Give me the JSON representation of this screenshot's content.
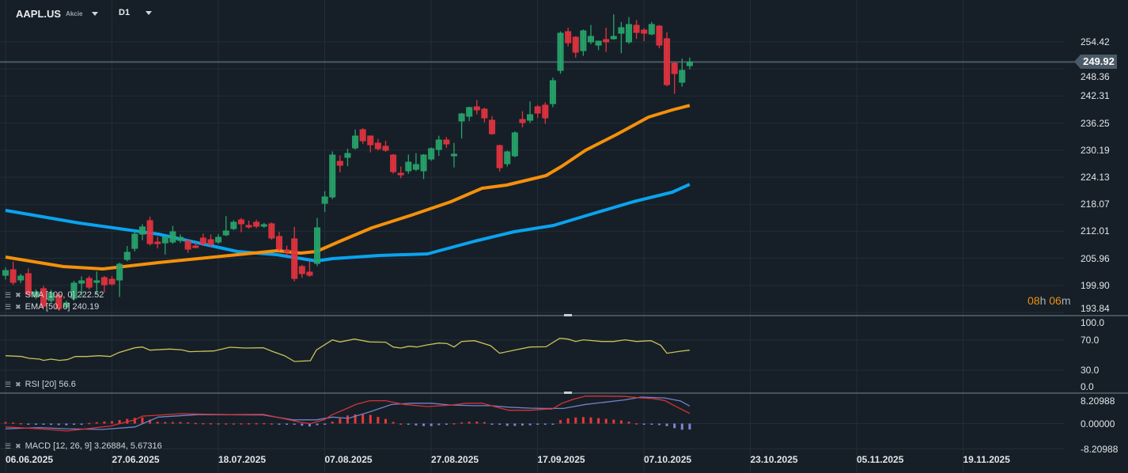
{
  "header": {
    "symbol": "AAPL.US",
    "asset_type": "Akcie",
    "timeframe": "D1"
  },
  "colors": {
    "bg": "#161f27",
    "grid": "#222d36",
    "up": "#27a46c",
    "down": "#e2333f",
    "sma": "#0aa3ef",
    "ema": "#f5900c",
    "rsi": "#c9c25a",
    "macd": "#d63239",
    "signal": "#7382c8",
    "hist_pos": "#e8383a",
    "hist_neg": "#7b86d6",
    "price_line": "#4a5a66"
  },
  "price_axis": {
    "labels": [
      "254.42",
      "248.36",
      "242.31",
      "236.25",
      "230.19",
      "224.13",
      "218.07",
      "212.01",
      "205.96",
      "199.90",
      "193.84"
    ]
  },
  "current_price": "249.92",
  "timer": {
    "hours": "08",
    "h_unit": "h",
    "minutes": "06",
    "m_unit": "m"
  },
  "indicators": {
    "sma_label": "SMA [100,  0] 222.52",
    "ema_label": "EMA [50, 0] 240.19",
    "rsi_label": "RSI [20]  56.6",
    "macd_label": "MACD [12, 26, 9] 3.26884,  5.67316"
  },
  "rsi_axis": [
    "100.0",
    "70.0",
    "30.0",
    "0.0"
  ],
  "macd_axis": [
    "8.20988",
    "0.00000",
    "-8.20988"
  ],
  "time_axis": [
    "06.06.2025",
    "27.06.2025",
    "18.07.2025",
    "07.08.2025",
    "27.08.2025",
    "17.09.2025",
    "07.10.2025",
    "23.10.2025",
    "05.11.2025",
    "19.11.2025"
  ],
  "chart_data": {
    "type": "candlestick",
    "price_range": [
      193.84,
      254.42
    ],
    "ohlc": [
      [
        202.16,
        203.9,
        201.2,
        203.22
      ],
      [
        203.4,
        205.2,
        200.0,
        200.57
      ],
      [
        201.1,
        202.5,
        200.4,
        201.98
      ],
      [
        202.52,
        203.7,
        197.5,
        197.91
      ],
      [
        197.38,
        199.0,
        196.8,
        198.44
      ],
      [
        199.15,
        199.8,
        194.9,
        195.25
      ],
      [
        196.49,
        198.9,
        196.0,
        198.26
      ],
      [
        197.73,
        198.3,
        194.3,
        194.72
      ],
      [
        195.08,
        196.5,
        194.6,
        195.96
      ],
      [
        197.02,
        200.9,
        196.5,
        200.39
      ],
      [
        200.39,
        201.9,
        197.6,
        200.92
      ],
      [
        201.45,
        202.0,
        199.0,
        199.5
      ],
      [
        200.57,
        203.0,
        197.8,
        200.92
      ],
      [
        201.63,
        202.0,
        198.3,
        200.04
      ],
      [
        201.28,
        202.0,
        199.9,
        200.21
      ],
      [
        201.1,
        205.0,
        197.3,
        204.64
      ],
      [
        205.7,
        208.7,
        205.3,
        207.3
      ],
      [
        208.18,
        212.2,
        207.5,
        211.37
      ],
      [
        211.37,
        213.6,
        210.0,
        212.97
      ],
      [
        214.39,
        215.3,
        208.8,
        209.25
      ],
      [
        209.6,
        210.8,
        208.2,
        209.25
      ],
      [
        209.42,
        211.0,
        206.8,
        210.66
      ],
      [
        209.6,
        213.2,
        209.2,
        211.9
      ],
      [
        209.96,
        211.3,
        209.4,
        210.66
      ],
      [
        209.78,
        210.2,
        207.2,
        208.01
      ],
      [
        208.72,
        209.6,
        208.2,
        208.36
      ],
      [
        210.49,
        211.5,
        208.7,
        209.25
      ],
      [
        210.13,
        211.3,
        208.5,
        209.07
      ],
      [
        209.6,
        211.4,
        209.2,
        210.66
      ],
      [
        211.2,
        215.4,
        210.9,
        212.08
      ],
      [
        212.61,
        214.5,
        212.3,
        214.03
      ],
      [
        214.56,
        215.0,
        211.8,
        213.68
      ],
      [
        213.32,
        214.4,
        212.6,
        212.97
      ],
      [
        214.03,
        214.6,
        212.7,
        213.15
      ],
      [
        213.15,
        213.9,
        212.8,
        213.5
      ],
      [
        213.68,
        214.0,
        210.1,
        210.49
      ],
      [
        210.84,
        211.9,
        207.6,
        208.01
      ],
      [
        207.83,
        208.8,
        206.6,
        207.3
      ],
      [
        210.31,
        213.0,
        200.8,
        201.45
      ],
      [
        204.11,
        204.5,
        201.6,
        202.52
      ],
      [
        202.87,
        205.3,
        201.8,
        202.16
      ],
      [
        204.82,
        215.0,
        204.2,
        212.79
      ],
      [
        218.28,
        221.0,
        216.3,
        219.7
      ],
      [
        219.7,
        229.9,
        219.2,
        229.09
      ],
      [
        227.67,
        229.0,
        225.2,
        226.79
      ],
      [
        228.56,
        230.5,
        226.6,
        229.44
      ],
      [
        230.68,
        234.8,
        230.3,
        233.34
      ],
      [
        234.76,
        235.1,
        231.6,
        232.28
      ],
      [
        233.34,
        233.5,
        229.7,
        231.39
      ],
      [
        231.75,
        232.7,
        230.1,
        230.51
      ],
      [
        231.04,
        232.3,
        229.8,
        230.15
      ],
      [
        229.09,
        229.3,
        224.9,
        225.37
      ],
      [
        225.01,
        226.5,
        223.9,
        224.66
      ],
      [
        225.55,
        229.2,
        224.9,
        227.49
      ],
      [
        225.9,
        229.5,
        225.5,
        226.96
      ],
      [
        225.55,
        229.3,
        223.7,
        229.09
      ],
      [
        228.2,
        230.8,
        227.8,
        230.51
      ],
      [
        230.33,
        233.4,
        228.9,
        232.45
      ],
      [
        232.45,
        233.1,
        230.7,
        231.57
      ],
      [
        228.91,
        231.8,
        226.3,
        229.27
      ],
      [
        236.71,
        238.5,
        232.8,
        238.3
      ],
      [
        237.77,
        239.9,
        236.7,
        239.72
      ],
      [
        239.89,
        241.4,
        238.2,
        239.19
      ],
      [
        239.36,
        239.7,
        236.4,
        237.41
      ],
      [
        236.88,
        237.8,
        233.6,
        233.87
      ],
      [
        231.21,
        231.4,
        225.4,
        226.25
      ],
      [
        227.14,
        230.1,
        226.5,
        229.8
      ],
      [
        228.91,
        234.4,
        228.6,
        234.05
      ],
      [
        237.06,
        238.9,
        235.3,
        236.35
      ],
      [
        236.88,
        241.1,
        236.3,
        238.12
      ],
      [
        239.89,
        240.3,
        237.4,
        238.48
      ],
      [
        240.25,
        240.9,
        236.1,
        237.41
      ],
      [
        240.6,
        246.4,
        239.8,
        245.74
      ],
      [
        248.04,
        256.8,
        247.3,
        256.37
      ],
      [
        256.72,
        257.6,
        253.4,
        254.24
      ],
      [
        255.48,
        255.7,
        250.9,
        252.12
      ],
      [
        252.47,
        257.2,
        251.3,
        256.9
      ],
      [
        254.42,
        258.2,
        253.9,
        255.66
      ],
      [
        253.71,
        254.6,
        252.6,
        254.6
      ],
      [
        254.95,
        257.6,
        252.2,
        254.42
      ],
      [
        255.13,
        260.6,
        254.9,
        255.66
      ],
      [
        256.37,
        258.9,
        251.9,
        257.61
      ],
      [
        254.42,
        260.0,
        254.0,
        258.32
      ],
      [
        258.14,
        259.3,
        255.1,
        256.55
      ],
      [
        257.08,
        257.5,
        254.6,
        256.37
      ],
      [
        256.19,
        258.9,
        255.9,
        258.32
      ],
      [
        257.96,
        258.2,
        253.0,
        253.71
      ],
      [
        255.13,
        256.6,
        244.5,
        244.85
      ],
      [
        249.64,
        250.0,
        242.8,
        247.33
      ],
      [
        245.39,
        250.7,
        244.4,
        248.04
      ],
      [
        249.11,
        250.9,
        248.3,
        249.92
      ]
    ],
    "sma": [
      [
        0,
        216.69
      ],
      [
        9.7,
        213.85
      ],
      [
        20.1,
        211.37
      ],
      [
        30.5,
        207.48
      ],
      [
        35.7,
        206.77
      ],
      [
        40.9,
        205.35
      ],
      [
        43,
        205.88
      ],
      [
        49.2,
        206.59
      ],
      [
        55.5,
        206.94
      ],
      [
        61.7,
        209.78
      ],
      [
        66.9,
        211.9
      ],
      [
        72.1,
        213.32
      ],
      [
        77.3,
        215.98
      ],
      [
        82.6,
        218.64
      ],
      [
        87.7,
        220.76
      ],
      [
        90,
        222.52
      ]
    ],
    "ema": [
      [
        0,
        206.24
      ],
      [
        7.6,
        204.11
      ],
      [
        12.8,
        203.58
      ],
      [
        20.1,
        205.0
      ],
      [
        30.5,
        206.77
      ],
      [
        35.7,
        207.65
      ],
      [
        38.8,
        207.12
      ],
      [
        40.9,
        207.48
      ],
      [
        44,
        209.78
      ],
      [
        48.2,
        212.79
      ],
      [
        53.4,
        215.63
      ],
      [
        58.6,
        218.64
      ],
      [
        62.7,
        221.65
      ],
      [
        65.9,
        222.36
      ],
      [
        71.1,
        224.48
      ],
      [
        73.2,
        226.61
      ],
      [
        76.3,
        230.15
      ],
      [
        80.4,
        233.69
      ],
      [
        84.6,
        237.59
      ],
      [
        87.7,
        239.19
      ],
      [
        90,
        240.19
      ]
    ],
    "rsi": [
      [
        0,
        49.3
      ],
      [
        2.1,
        48.2
      ],
      [
        3.1,
        45.8
      ],
      [
        4.5,
        44.7
      ],
      [
        5,
        43
      ],
      [
        6,
        44.7
      ],
      [
        7.1,
        43
      ],
      [
        8.1,
        44
      ],
      [
        9.2,
        48.2
      ],
      [
        10.7,
        48.2
      ],
      [
        12.3,
        49.3
      ],
      [
        13.8,
        48.2
      ],
      [
        14.9,
        53.5
      ],
      [
        17,
        59.8
      ],
      [
        18,
        60.8
      ],
      [
        19,
        56.6
      ],
      [
        21.6,
        58.1
      ],
      [
        23.2,
        57
      ],
      [
        24.2,
        54.6
      ],
      [
        27.4,
        55.6
      ],
      [
        29.5,
        60.5
      ],
      [
        31.5,
        59.5
      ],
      [
        33.9,
        59.8
      ],
      [
        35.2,
        54.6
      ],
      [
        36.7,
        49.3
      ],
      [
        38,
        41.6
      ],
      [
        40.1,
        42.6
      ],
      [
        40.9,
        57
      ],
      [
        43,
        70.3
      ],
      [
        44,
        67.6
      ],
      [
        45.9,
        71.4
      ],
      [
        47.9,
        67.6
      ],
      [
        50,
        67.3
      ],
      [
        51,
        60.8
      ],
      [
        52,
        59.5
      ],
      [
        53.1,
        61.9
      ],
      [
        54.1,
        60.8
      ],
      [
        55.5,
        63.7
      ],
      [
        57,
        66.1
      ],
      [
        58.1,
        65.4
      ],
      [
        59,
        60.8
      ],
      [
        60,
        68.2
      ],
      [
        61.7,
        69.3
      ],
      [
        63.8,
        62.6
      ],
      [
        65,
        52.5
      ],
      [
        66.9,
        56.6
      ],
      [
        69,
        60.8
      ],
      [
        71.1,
        61.2
      ],
      [
        72.9,
        72.4
      ],
      [
        74,
        71.4
      ],
      [
        75,
        68.2
      ],
      [
        76,
        70.4
      ],
      [
        78.4,
        68.2
      ],
      [
        80,
        68.2
      ],
      [
        81.5,
        70.4
      ],
      [
        83,
        68.2
      ],
      [
        84.9,
        69.3
      ],
      [
        86.2,
        62.9
      ],
      [
        87,
        52.5
      ],
      [
        88.8,
        55.3
      ],
      [
        90,
        56.6
      ]
    ],
    "macd": [
      [
        0,
        -1.1
      ],
      [
        4.5,
        -1.7
      ],
      [
        8.1,
        -2.4
      ],
      [
        13.8,
        -0.8
      ],
      [
        17,
        1.2
      ],
      [
        18,
        2.4
      ],
      [
        23.2,
        3.2
      ],
      [
        29.5,
        2.9
      ],
      [
        33.9,
        3.0
      ],
      [
        38.8,
        0.4
      ],
      [
        40.1,
        0.0
      ],
      [
        41.9,
        1.2
      ],
      [
        43,
        2.9
      ],
      [
        45.1,
        5.1
      ],
      [
        46.1,
        6.2
      ],
      [
        47.9,
        7.4
      ],
      [
        50,
        7.4
      ],
      [
        52.4,
        6.2
      ],
      [
        55.5,
        5.5
      ],
      [
        58.6,
        6.0
      ],
      [
        60.7,
        6.6
      ],
      [
        62.7,
        6.6
      ],
      [
        64.8,
        5.2
      ],
      [
        66.2,
        4.3
      ],
      [
        69,
        4.3
      ],
      [
        71.1,
        4.7
      ],
      [
        71.9,
        4.7
      ],
      [
        73.2,
        6.6
      ],
      [
        74.7,
        7.9
      ],
      [
        76.3,
        8.9
      ],
      [
        78.4,
        8.9
      ],
      [
        81.5,
        8.8
      ],
      [
        83.6,
        8.3
      ],
      [
        85.1,
        8.1
      ],
      [
        86.7,
        7.5
      ],
      [
        88,
        5.8
      ],
      [
        90,
        3.27
      ]
    ],
    "signal": [
      [
        0,
        -1.7
      ],
      [
        4.5,
        -1.3
      ],
      [
        8.1,
        -1.7
      ],
      [
        12.8,
        -1.9
      ],
      [
        17,
        -1.1
      ],
      [
        20.1,
        2.1
      ],
      [
        25.3,
        2.9
      ],
      [
        33.9,
        2.8
      ],
      [
        37.8,
        1.2
      ],
      [
        40.9,
        1.2
      ],
      [
        43,
        2.1
      ],
      [
        45.1,
        1.7
      ],
      [
        47.9,
        3.8
      ],
      [
        50.8,
        6.2
      ],
      [
        53.4,
        6.6
      ],
      [
        56,
        6.6
      ],
      [
        58.6,
        6.0
      ],
      [
        61.7,
        5.8
      ],
      [
        63.8,
        5.8
      ],
      [
        66.2,
        5.3
      ],
      [
        69,
        5.0
      ],
      [
        71.1,
        4.9
      ],
      [
        73.4,
        4.9
      ],
      [
        76.3,
        6.2
      ],
      [
        78.4,
        6.8
      ],
      [
        81.5,
        7.7
      ],
      [
        83.6,
        8.6
      ],
      [
        86.7,
        8.3
      ],
      [
        88.8,
        7.3
      ],
      [
        90,
        5.67
      ]
    ],
    "macd_range": [
      -8.20988,
      8.20988
    ],
    "rsi_range": [
      0,
      100
    ]
  }
}
